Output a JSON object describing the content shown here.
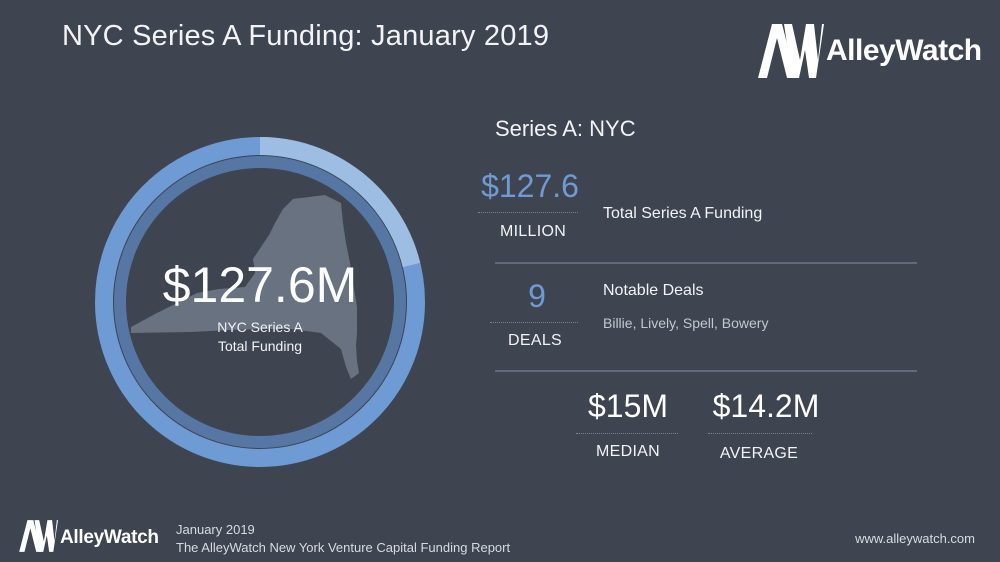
{
  "header": {
    "title": "NYC Series A Funding: January 2019",
    "logo_text": "AlleyWatch"
  },
  "donut": {
    "amount": "$127.6M",
    "caption_line1": "NYC Series A",
    "caption_line2": "Total Funding",
    "ring_color": "#6e9bd3",
    "ring_highlight_color": "#8fb4e0"
  },
  "stats": {
    "section_title": "Series A: NYC",
    "total": {
      "value": "$127.6",
      "unit": "MILLION",
      "label": "Total Series A Funding"
    },
    "deals": {
      "value": "9",
      "unit": "DEALS",
      "label": "Notable Deals",
      "names": "Billie, Lively, Spell, Bowery"
    },
    "median": {
      "value": "$15M",
      "unit": "MEDIAN"
    },
    "average": {
      "value": "$14.2M",
      "unit": "AVERAGE"
    }
  },
  "footer": {
    "logo_text": "AlleyWatch",
    "date": "January 2019",
    "report": "The AlleyWatch New York Venture Capital Funding Report",
    "url": "www.alleywatch.com"
  },
  "colors": {
    "background": "#3e4450",
    "accent_blue": "#6e9bd3",
    "state_gray": "#6c7583"
  }
}
